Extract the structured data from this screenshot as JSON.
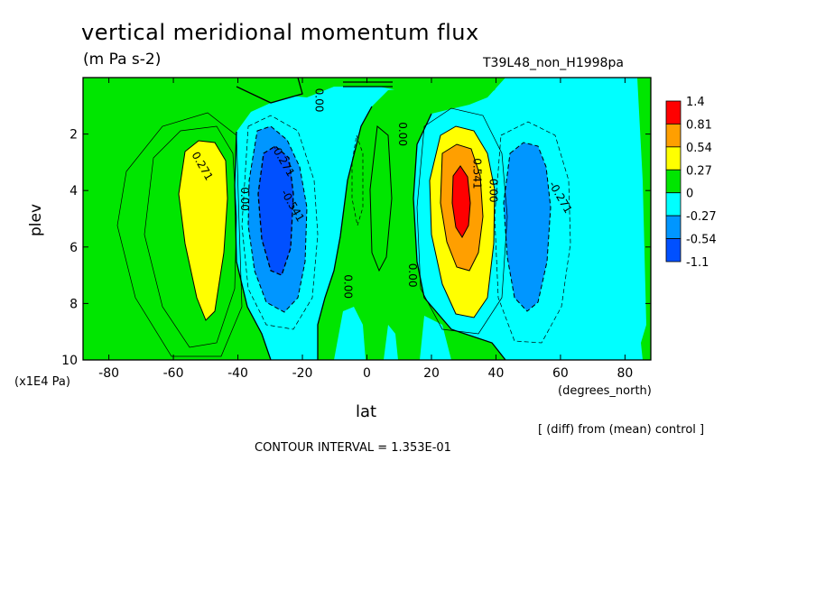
{
  "header": {
    "title": "vertical meridional momentum flux",
    "units": "(m Pa s-2)",
    "run": "T39L48_non_H1998pa"
  },
  "axes": {
    "xlabel": "lat",
    "xunits": "(degrees_north)",
    "ylabel": "plev",
    "yunits": "(x1E4 Pa)"
  },
  "footer": {
    "diff_note": "[ (diff) from (mean) control ]",
    "contour_interval": "CONTOUR INTERVAL = 1.353E-01"
  },
  "chart_data": {
    "type": "contour",
    "title": "vertical meridional momentum flux",
    "subtitle": "(m Pa s-2)",
    "xlabel": "lat",
    "ylabel": "plev",
    "x_units": "degrees_north",
    "y_units": "x1E4 Pa",
    "xlim": [
      -88,
      88
    ],
    "ylim": [
      10,
      0
    ],
    "x_ticks": [
      -80,
      -60,
      -40,
      -20,
      0,
      20,
      40,
      60,
      80
    ],
    "y_ticks": [
      2,
      4,
      6,
      8,
      10
    ],
    "x_tick_labels": [
      "-80",
      "-60",
      "-40",
      "-20",
      "0",
      "20",
      "40",
      "60",
      "80"
    ],
    "y_tick_labels": [
      "2",
      "4",
      "6",
      "8",
      "10"
    ],
    "contour_interval": 0.1353,
    "colorbar": {
      "labels": [
        "1.4",
        "0.81",
        "0.54",
        "0.27",
        "0",
        "-0.27",
        "-0.54",
        "-1.1"
      ],
      "colors": [
        "#ff0000",
        "#ff9f00",
        "#ffff00",
        "#00e600",
        "#00ffff",
        "#0096ff",
        "#0050ff"
      ]
    },
    "contour_labels": [
      {
        "text": "0.271",
        "lat": -52,
        "plev": 3.2
      },
      {
        "text": "-0.271",
        "lat": -27,
        "plev": 3.0
      },
      {
        "text": "-0.541",
        "lat": -24,
        "plev": 4.6
      },
      {
        "text": "0.00",
        "lat": -39,
        "plev": 4.3
      },
      {
        "text": "0.00",
        "lat": -16,
        "plev": 0.8
      },
      {
        "text": "0.00",
        "lat": 10,
        "plev": 2.0
      },
      {
        "text": "0.00",
        "lat": -7,
        "plev": 7.4
      },
      {
        "text": "0.00",
        "lat": 13,
        "plev": 7.0
      },
      {
        "text": "0.541",
        "lat": 33,
        "plev": 3.4
      },
      {
        "text": "0.00",
        "lat": 38,
        "plev": 4.0
      },
      {
        "text": "-0.271",
        "lat": 59,
        "plev": 4.3
      }
    ],
    "features": [
      {
        "name": "southern positive maximum",
        "lat": -49,
        "plev": 4.5,
        "value": 0.35
      },
      {
        "name": "southern negative minimum",
        "lat": -28,
        "plev": 4.5,
        "value": -0.6
      },
      {
        "name": "northern positive maximum",
        "lat": 29,
        "plev": 4.2,
        "value": 0.85
      },
      {
        "name": "northern negative minimum",
        "lat": 52,
        "plev": 4.6,
        "value": -0.4
      }
    ]
  }
}
